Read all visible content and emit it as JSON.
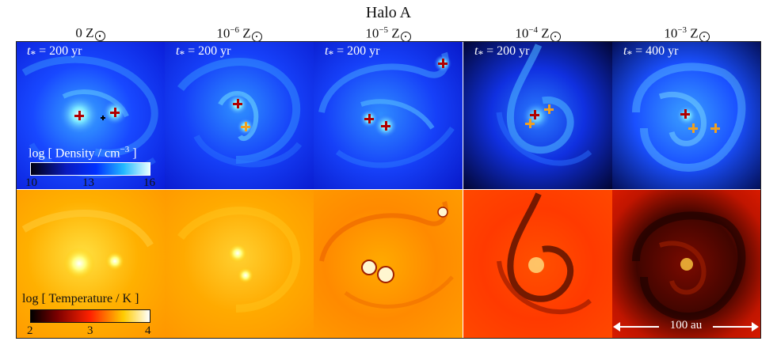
{
  "title": "Halo A",
  "columns": [
    {
      "zbase": "0",
      "zexp": "",
      "time_value": "= 200 yr"
    },
    {
      "zbase": "10",
      "zexp": "−6",
      "time_value": "= 200 yr"
    },
    {
      "zbase": "10",
      "zexp": "−5",
      "time_value": "= 200 yr"
    },
    {
      "zbase": "10",
      "zexp": "−4",
      "time_value": "= 200 yr"
    },
    {
      "zbase": "10",
      "zexp": "−3",
      "time_value": "= 400 yr"
    }
  ],
  "time_symbol": "t",
  "time_subscript": "*",
  "z_symbol": "Z",
  "density_colorbar": {
    "label_pre": "log [ Density / cm",
    "label_exp": "−3",
    "label_post": " ]",
    "ticks": [
      "10",
      "13",
      "16"
    ]
  },
  "temperature_colorbar": {
    "label": "log [ Temperature / K ]",
    "ticks": [
      "2",
      "3",
      "4"
    ]
  },
  "scale_bar": {
    "label": "100 au"
  },
  "colors": {
    "density_low": "#000010",
    "density_mid": "#0022ff",
    "density_high": "#e6ffff",
    "temp_low": "#000000",
    "temp_mid": "#ff2200",
    "temp_high": "#ffffff"
  }
}
